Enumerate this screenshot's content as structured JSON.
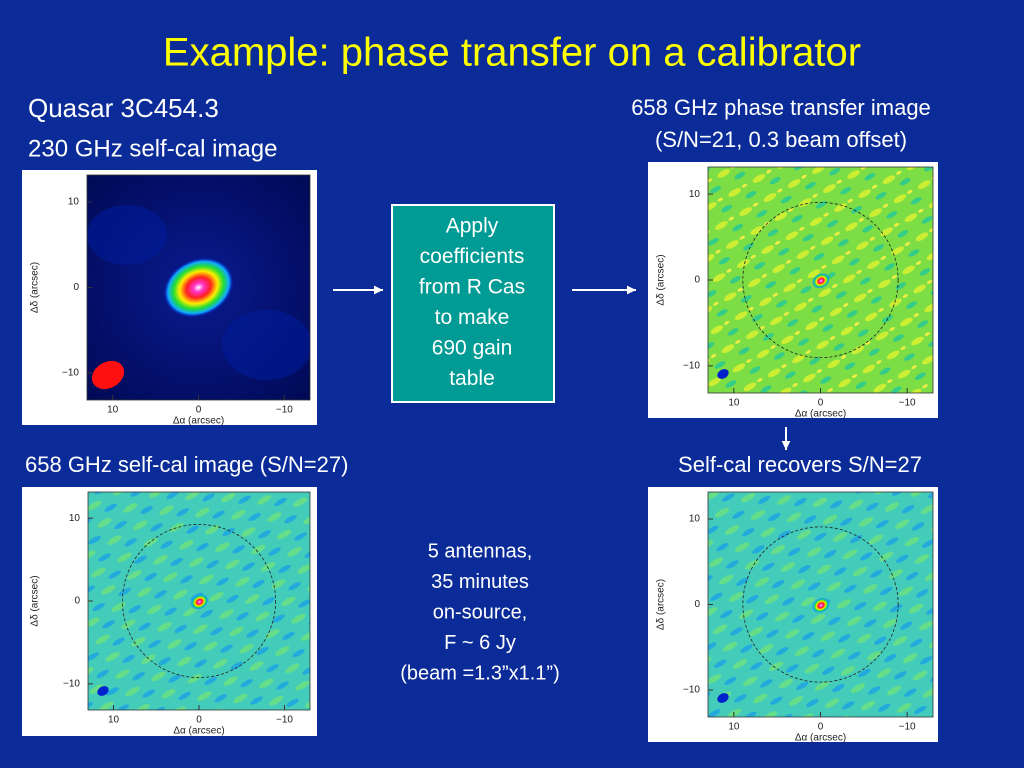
{
  "title": "Example: phase transfer on a calibrator",
  "top_left_caption": {
    "lines": [
      "Quasar 3C454.3",
      "230 GHz self-cal image"
    ]
  },
  "top_right_caption": {
    "lines": [
      "658 GHz phase transfer image",
      "(S/N=21, 0.3 beam offset)"
    ]
  },
  "box": {
    "lines": [
      "Apply",
      "coefficients",
      "from R Cas",
      "to make",
      "690 gain",
      "table"
    ]
  },
  "bottom_left_caption": "658 GHz self-cal image (S/N=27)",
  "bottom_right_caption": "Self-cal recovers S/N=27",
  "notes": {
    "lines": [
      "5 antennas,",
      "35 minutes",
      "on-source,",
      "F ~ 6 Jy",
      "(beam =1.3”x1.1”)"
    ]
  },
  "panels": [
    {
      "xticks": [
        "10",
        "0",
        "−10"
      ],
      "yticks": [
        "10",
        "0",
        "−10"
      ],
      "xlabel": "Δα (arcsec)",
      "ylabel": "Δδ (arcsec)"
    },
    {
      "xticks": [
        "10",
        "0",
        "−10"
      ],
      "yticks": [
        "10",
        "0",
        "−10"
      ],
      "xlabel": "Δα (arcsec)",
      "ylabel": "Δδ (arcsec)"
    },
    {
      "xticks": [
        "10",
        "0",
        "−10"
      ],
      "yticks": [
        "10",
        "0",
        "−10"
      ],
      "xlabel": "Δα (arcsec)",
      "ylabel": "Δδ (arcsec)"
    },
    {
      "xticks": [
        "10",
        "0",
        "−10"
      ],
      "yticks": [
        "10",
        "0",
        "−10"
      ],
      "xlabel": "Δα (arcsec)",
      "ylabel": "Δδ (arcsec)"
    }
  ]
}
